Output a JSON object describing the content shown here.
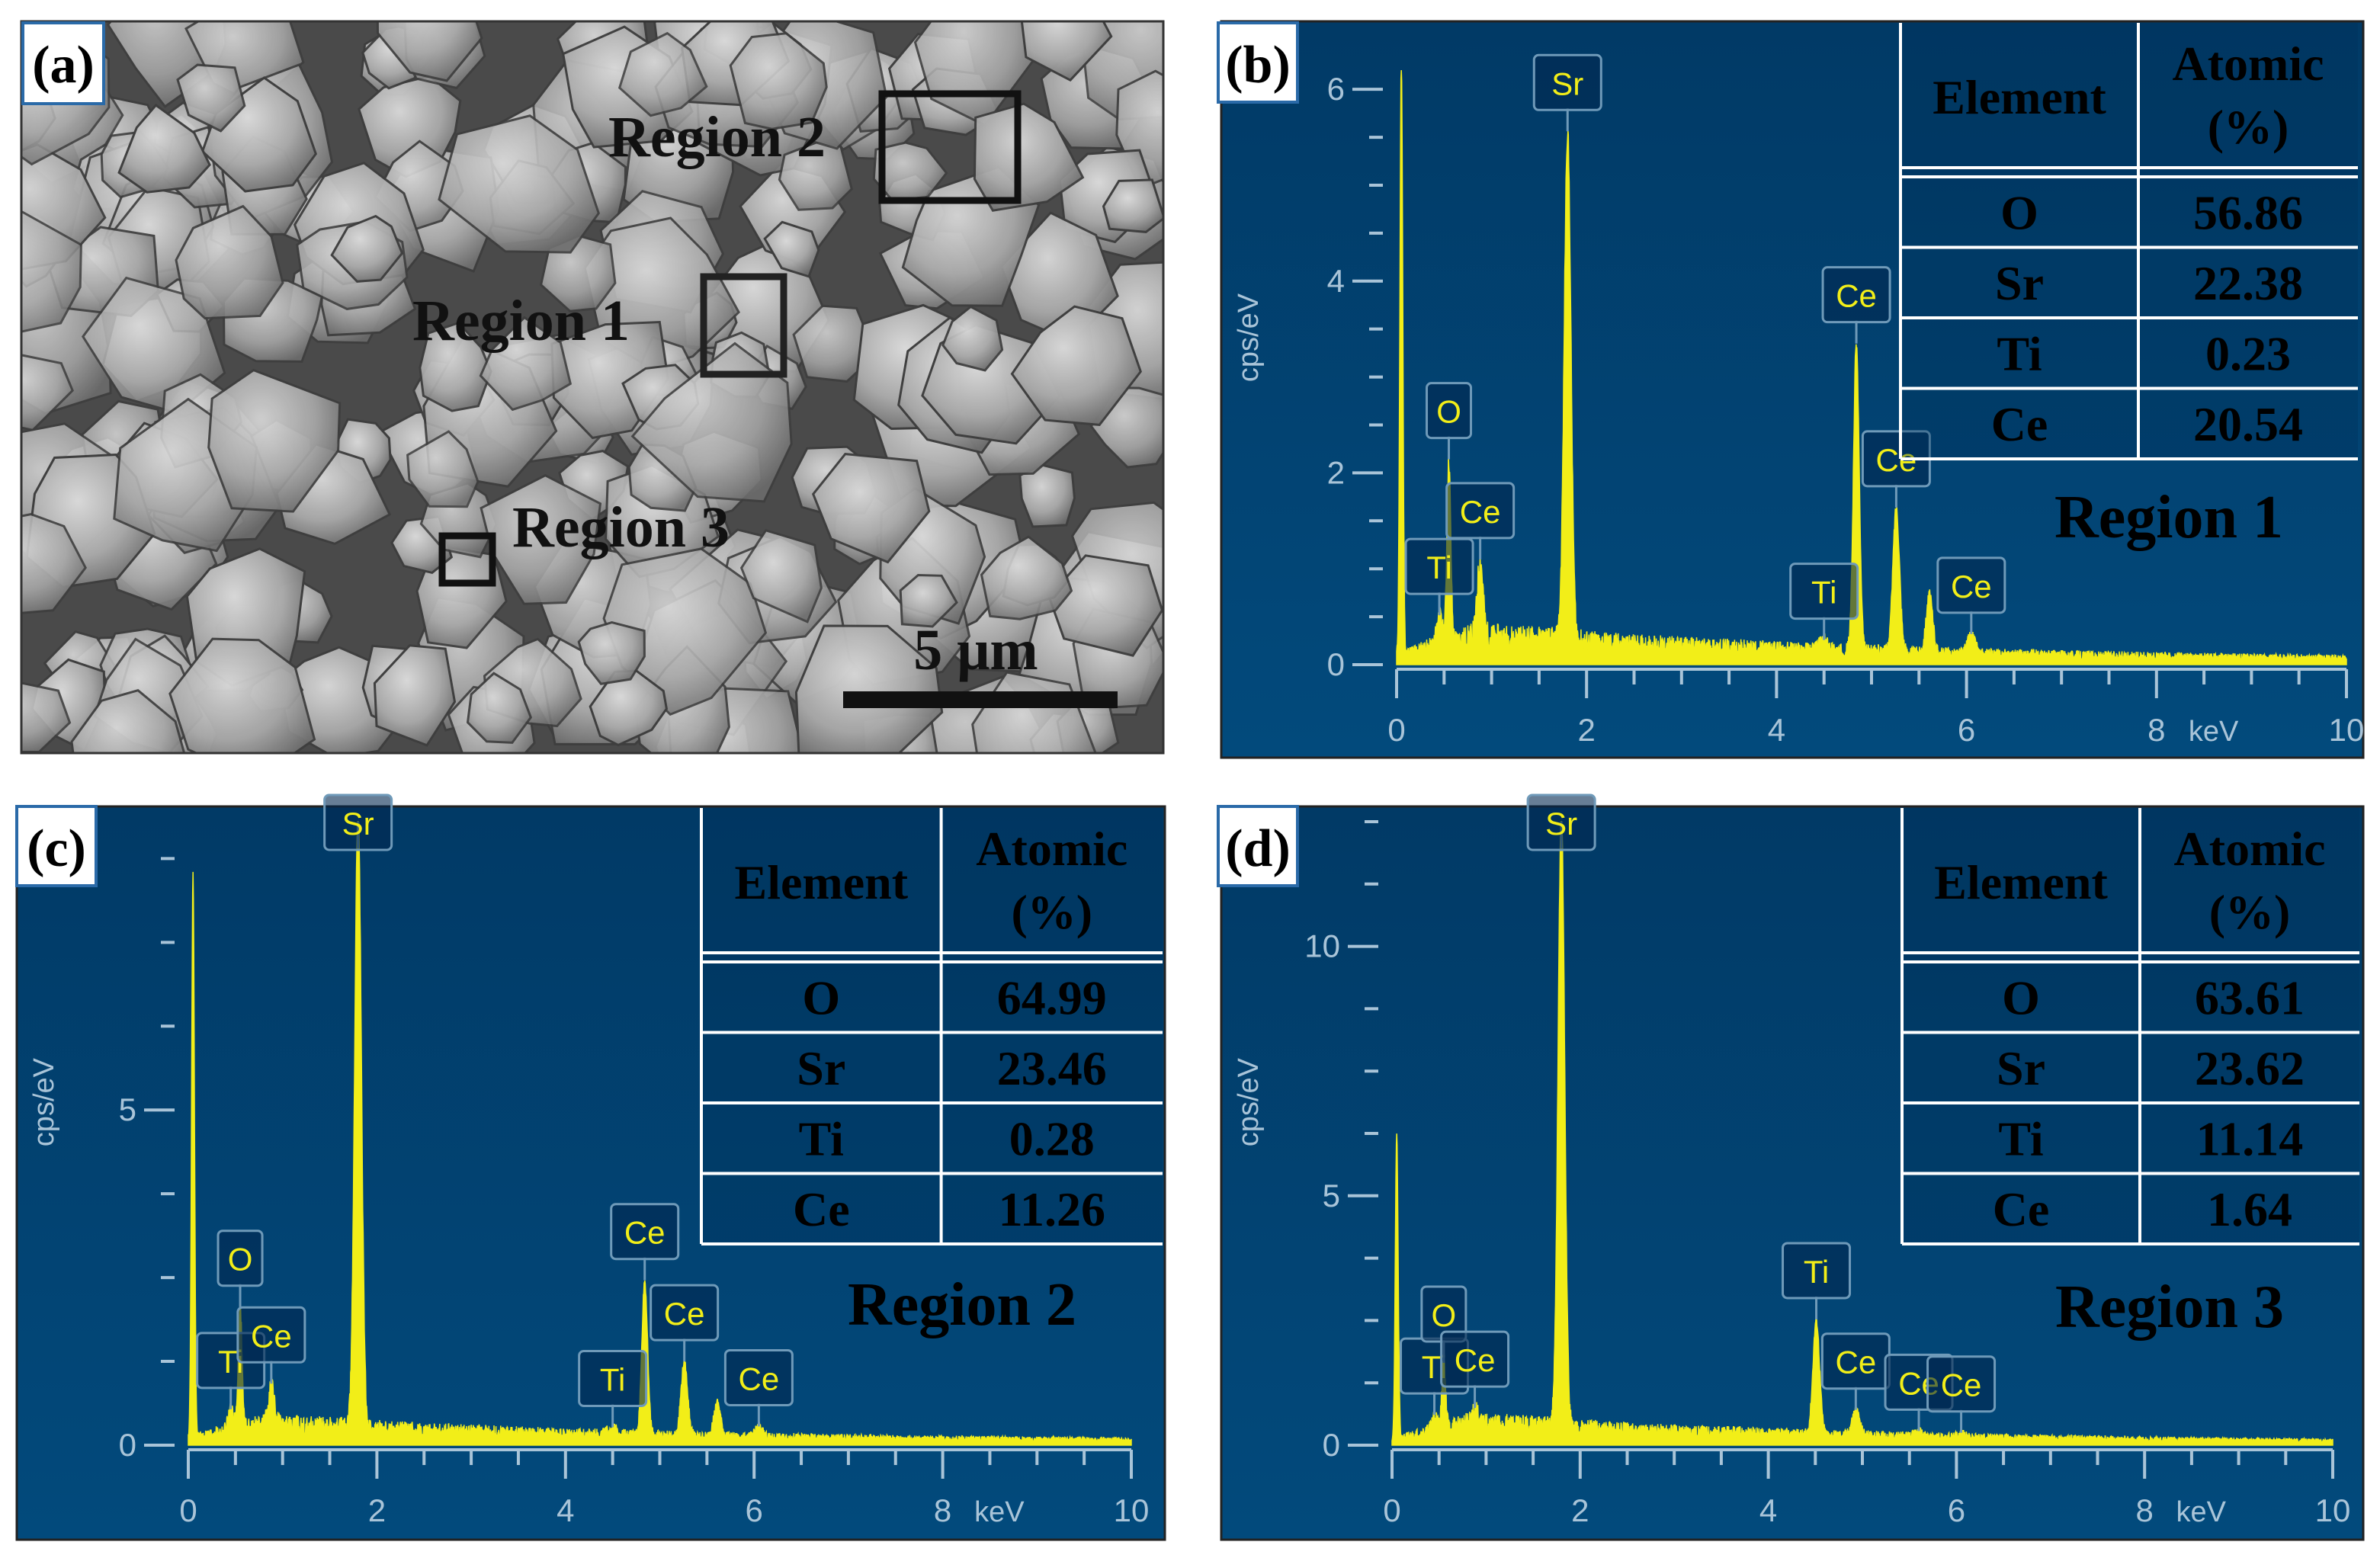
{
  "figure": {
    "colors": {
      "bg": "#02426f",
      "bg_dark": "#013258",
      "spectrum": "#f2ee18",
      "axis": "#a9c4d8",
      "label_box": "#6f9ab9"
    },
    "sem": {
      "tag": "(a)",
      "regions": [
        "Region 2",
        "Region 1",
        "Region 3"
      ],
      "scale_bar_label": "5 μm"
    }
  },
  "chart_data": [
    {
      "type": "line",
      "panel": "(b)",
      "region_label": "Region 1",
      "xlabel": "keV",
      "ylabel": "cps/eV",
      "xlim": [
        0,
        10
      ],
      "ylim": [
        0,
        6.2
      ],
      "xticks": [
        0,
        2,
        4,
        6,
        8,
        10
      ],
      "yticks": [
        0,
        2,
        4,
        6
      ],
      "background": [
        [
          0,
          0.1
        ],
        [
          0.3,
          0.18
        ],
        [
          0.8,
          0.3
        ],
        [
          1.5,
          0.28
        ],
        [
          2.5,
          0.22
        ],
        [
          4,
          0.17
        ],
        [
          6,
          0.12
        ],
        [
          8,
          0.09
        ],
        [
          10,
          0.07
        ]
      ],
      "peaks": [
        {
          "x": 0.05,
          "h": 6.2,
          "w": 0.015
        },
        {
          "x": 0.45,
          "h": 0.3,
          "w": 0.03,
          "label": "Ti"
        },
        {
          "x": 0.55,
          "h": 1.9,
          "w": 0.02,
          "label": "O"
        },
        {
          "x": 0.88,
          "h": 0.8,
          "w": 0.03,
          "label": "Ce"
        },
        {
          "x": 1.8,
          "h": 5.3,
          "w": 0.035,
          "label": "Sr"
        },
        {
          "x": 4.5,
          "h": 0.1,
          "w": 0.05,
          "label": "Ti"
        },
        {
          "x": 4.84,
          "h": 3.2,
          "w": 0.03,
          "label": "Ce"
        },
        {
          "x": 5.26,
          "h": 1.5,
          "w": 0.035,
          "label": "Ce"
        },
        {
          "x": 5.61,
          "h": 0.6,
          "w": 0.035
        },
        {
          "x": 6.05,
          "h": 0.2,
          "w": 0.04,
          "label": "Ce"
        }
      ],
      "table": {
        "headers": [
          "Element",
          "Atomic",
          "(%)"
        ],
        "rows": [
          [
            "O",
            "56.86"
          ],
          [
            "Sr",
            "22.38"
          ],
          [
            "Ti",
            "0.23"
          ],
          [
            "Ce",
            "20.54"
          ]
        ]
      }
    },
    {
      "type": "line",
      "panel": "(c)",
      "region_label": "Region 2",
      "xlabel": "keV",
      "ylabel": "cps/eV",
      "xlim": [
        0,
        10
      ],
      "ylim": [
        0,
        9.3
      ],
      "xticks": [
        0,
        2,
        4,
        6,
        8,
        10
      ],
      "yticks": [
        0,
        5
      ],
      "background": [
        [
          0,
          0.1
        ],
        [
          0.3,
          0.2
        ],
        [
          0.8,
          0.32
        ],
        [
          1.5,
          0.3
        ],
        [
          2.5,
          0.23
        ],
        [
          4,
          0.18
        ],
        [
          6,
          0.13
        ],
        [
          8,
          0.1
        ],
        [
          10,
          0.08
        ]
      ],
      "peaks": [
        {
          "x": 0.05,
          "h": 8.4,
          "w": 0.015
        },
        {
          "x": 0.45,
          "h": 0.3,
          "w": 0.03,
          "label": "Ti"
        },
        {
          "x": 0.55,
          "h": 1.8,
          "w": 0.02,
          "label": "O"
        },
        {
          "x": 0.88,
          "h": 0.6,
          "w": 0.03,
          "label": "Ce"
        },
        {
          "x": 1.8,
          "h": 9.2,
          "w": 0.035,
          "label": "Sr"
        },
        {
          "x": 4.5,
          "h": 0.1,
          "w": 0.05,
          "label": "Ti"
        },
        {
          "x": 4.84,
          "h": 2.3,
          "w": 0.03,
          "label": "Ce"
        },
        {
          "x": 5.26,
          "h": 1.1,
          "w": 0.035,
          "label": "Ce"
        },
        {
          "x": 5.61,
          "h": 0.5,
          "w": 0.035
        },
        {
          "x": 6.05,
          "h": 0.15,
          "w": 0.04,
          "label": "Ce"
        }
      ],
      "table": {
        "headers": [
          "Element",
          "Atomic",
          "(%)"
        ],
        "rows": [
          [
            "O",
            "64.99"
          ],
          [
            "Sr",
            "23.46"
          ],
          [
            "Ti",
            "0.28"
          ],
          [
            "Ce",
            "11.26"
          ]
        ]
      }
    },
    {
      "type": "line",
      "panel": "(d)",
      "region_label": "Region 3",
      "xlabel": "keV",
      "ylabel": "cps/eV",
      "xlim": [
        0,
        10
      ],
      "ylim": [
        0,
        12.5
      ],
      "xticks": [
        0,
        2,
        4,
        6,
        8,
        10
      ],
      "yticks": [
        0,
        5,
        10
      ],
      "background": [
        [
          0,
          0.1
        ],
        [
          0.3,
          0.25
        ],
        [
          0.8,
          0.45
        ],
        [
          1.5,
          0.42
        ],
        [
          2.5,
          0.32
        ],
        [
          4,
          0.24
        ],
        [
          6,
          0.17
        ],
        [
          8,
          0.12
        ],
        [
          10,
          0.09
        ]
      ],
      "peaks": [
        {
          "x": 0.05,
          "h": 6.1,
          "w": 0.015
        },
        {
          "x": 0.45,
          "h": 0.3,
          "w": 0.03,
          "label": "Ti"
        },
        {
          "x": 0.55,
          "h": 1.3,
          "w": 0.02,
          "label": "O"
        },
        {
          "x": 0.88,
          "h": 0.3,
          "w": 0.03,
          "label": "Ce"
        },
        {
          "x": 1.8,
          "h": 12.3,
          "w": 0.035,
          "label": "Sr"
        },
        {
          "x": 4.51,
          "h": 2.3,
          "w": 0.035,
          "label": "Ti"
        },
        {
          "x": 4.93,
          "h": 0.5,
          "w": 0.04,
          "label": "Ce"
        },
        {
          "x": 5.6,
          "h": 0.1,
          "w": 0.04,
          "label": "Ce"
        },
        {
          "x": 6.05,
          "h": 0.08,
          "w": 0.04,
          "label": "Ce"
        }
      ],
      "table": {
        "headers": [
          "Element",
          "Atomic",
          "(%)"
        ],
        "rows": [
          [
            "O",
            "63.61"
          ],
          [
            "Sr",
            "23.62"
          ],
          [
            "Ti",
            "11.14"
          ],
          [
            "Ce",
            "1.64"
          ]
        ]
      }
    }
  ]
}
